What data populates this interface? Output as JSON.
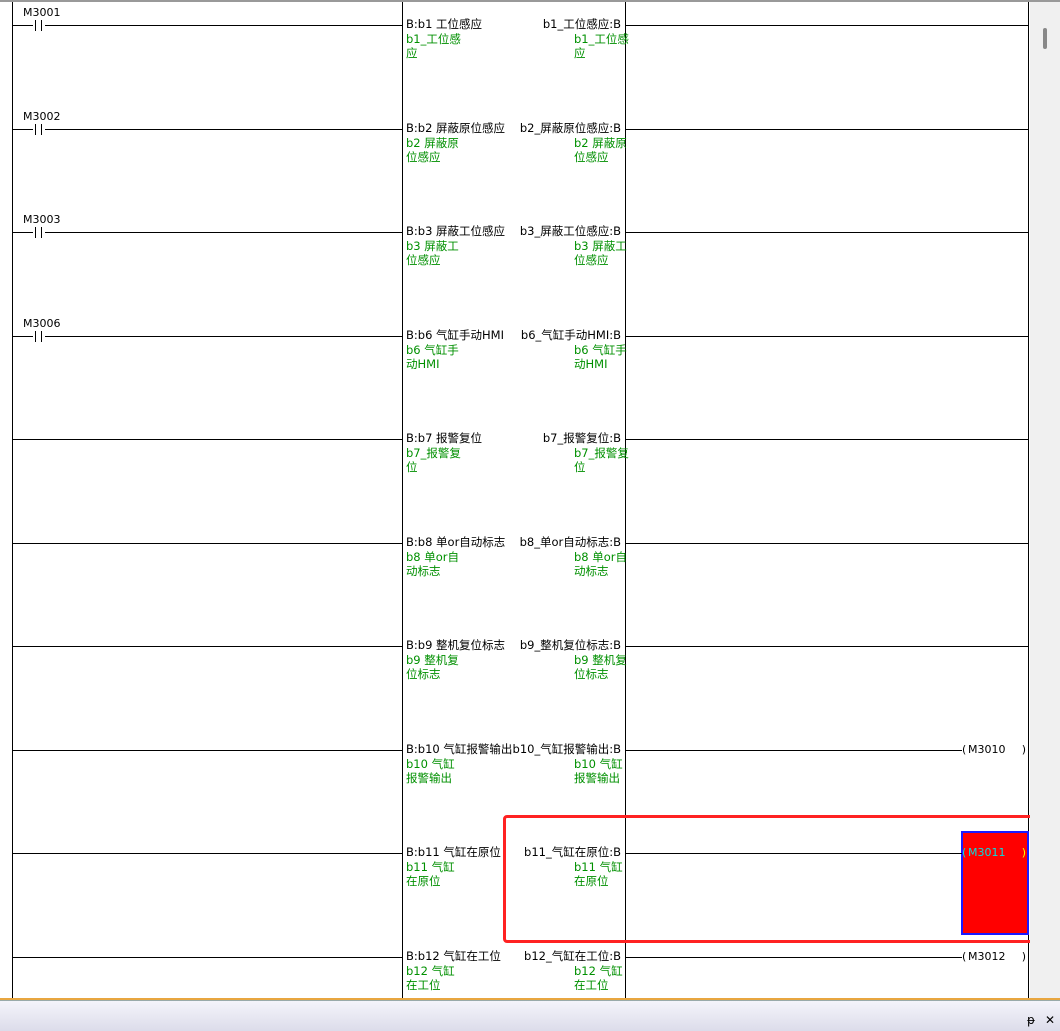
{
  "rungs": [
    {
      "contact": "M3001",
      "left_tag": "B:b1  工位感应",
      "right_tag": "b1_工位感应:B",
      "left_comment": [
        "b1_工位感",
        "应"
      ],
      "right_comment": [
        "b1_工位感",
        "应"
      ],
      "coil": null
    },
    {
      "contact": "M3002",
      "left_tag": "B:b2  屏蔽原位感应",
      "right_tag": "b2_屏蔽原位感应:B",
      "left_comment": [
        "b2 屏蔽原",
        "位感应"
      ],
      "right_comment": [
        "b2 屏蔽原",
        "位感应"
      ],
      "coil": null
    },
    {
      "contact": "M3003",
      "left_tag": "B:b3  屏蔽工位感应",
      "right_tag": "b3_屏蔽工位感应:B",
      "left_comment": [
        "b3 屏蔽工",
        "位感应"
      ],
      "right_comment": [
        "b3 屏蔽工",
        "位感应"
      ],
      "coil": null
    },
    {
      "contact": "M3006",
      "left_tag": "B:b6  气缸手动HMI",
      "right_tag": "b6_气缸手动HMI:B",
      "left_comment": [
        "b6 气缸手",
        "动HMI"
      ],
      "right_comment": [
        "b6 气缸手",
        "动HMI"
      ],
      "coil": null
    },
    {
      "contact": null,
      "left_tag": "B:b7  报警复位",
      "right_tag": "b7_报警复位:B",
      "left_comment": [
        "b7_报警复",
        "位"
      ],
      "right_comment": [
        "b7_报警复",
        "位"
      ],
      "coil": null
    },
    {
      "contact": null,
      "left_tag": "B:b8  单or自动标志",
      "right_tag": "b8_单or自动标志:B",
      "left_comment": [
        "b8 单or自",
        "动标志"
      ],
      "right_comment": [
        "b8 单or自",
        "动标志"
      ],
      "coil": null
    },
    {
      "contact": null,
      "left_tag": "B:b9  整机复位标志",
      "right_tag": "b9_整机复位标志:B",
      "left_comment": [
        "b9 整机复",
        "位标志"
      ],
      "right_comment": [
        "b9 整机复",
        "位标志"
      ],
      "coil": null
    },
    {
      "contact": null,
      "left_tag": "B:b10  气缸报警输出",
      "right_tag": "b10_气缸报警输出:B",
      "left_comment": [
        "b10 气缸",
        "报警输出"
      ],
      "right_comment": [
        "b10 气缸",
        "报警输出"
      ],
      "coil": "M3010"
    },
    {
      "contact": null,
      "left_tag": "B:b11  气缸在原位",
      "right_tag": "b11_气缸在原位:B",
      "left_comment": [
        "b11 气缸",
        "在原位"
      ],
      "right_comment": [
        "b11 气缸",
        "在原位"
      ],
      "coil": "M3011",
      "selected": true
    },
    {
      "contact": null,
      "left_tag": "B:b12  气缸在工位",
      "right_tag": "b12_气缸在工位:B",
      "left_comment": [
        "b12 气缸",
        "在工位"
      ],
      "right_comment": [
        "b12 气缸",
        "在工位"
      ],
      "coil": "M3012"
    }
  ],
  "colors": {
    "comment": "#009000",
    "selection": "#ff0000",
    "selection_border": "#1a1aff",
    "highlight": "#ff2222",
    "selected_coil_text": "#00e0e0"
  },
  "panel": {
    "pin_icon": "pin-icon",
    "close_icon": "close-icon",
    "pin": "ᵽ",
    "close": "✕"
  }
}
